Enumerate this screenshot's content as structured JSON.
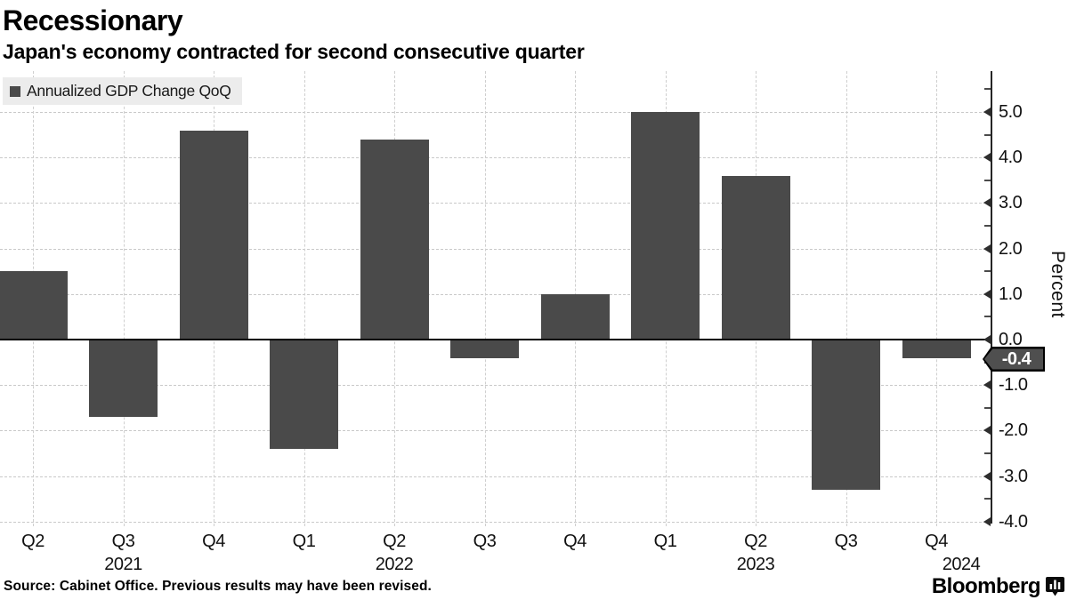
{
  "header": {
    "title": "Recessionary",
    "subtitle": "Japan's economy contracted for second consecutive quarter"
  },
  "legend": {
    "label": "Annualized GDP Change QoQ",
    "swatch_color": "#4a4a4a"
  },
  "chart_data": {
    "type": "bar",
    "series_name": "Annualized GDP Change QoQ",
    "categories": [
      "Q2",
      "Q3",
      "Q4",
      "Q1",
      "Q2",
      "Q3",
      "Q4",
      "Q1",
      "Q2",
      "Q3",
      "Q4"
    ],
    "year_labels": [
      {
        "text": "2021",
        "index": 1
      },
      {
        "text": "2022",
        "index": 4
      },
      {
        "text": "2023",
        "index": 8
      },
      {
        "text": "2024",
        "index": 10
      }
    ],
    "values": [
      1.5,
      -1.7,
      4.6,
      -2.4,
      4.4,
      -0.4,
      1.0,
      5.0,
      3.6,
      -3.3,
      -0.4
    ],
    "title": "Recessionary",
    "subtitle": "Japan's economy contracted for second consecutive quarter",
    "xlabel": "",
    "ylabel": "Percent",
    "ylim": [
      -4.1,
      5.9
    ],
    "ytick_labels": [
      "5.0",
      "4.0",
      "3.0",
      "2.0",
      "1.0",
      "0.0",
      "-1.0",
      "-2.0",
      "-3.0",
      "-4.0"
    ],
    "ytick_values": [
      5,
      4,
      3,
      2,
      1,
      0,
      -1,
      -2,
      -3,
      -4
    ],
    "minor_tick_step": 0.5,
    "grid": true,
    "legend_position": "top-left",
    "bar_color": "#4a4a4a",
    "last_value_annotation": "-0.4"
  },
  "annotation": {
    "label": "-0.4"
  },
  "footer": {
    "source": "Source: Cabinet Office. Previous results may have been revised.",
    "brand": "Bloomberg",
    "brand_icon": "bar-chart-bubble-icon"
  }
}
